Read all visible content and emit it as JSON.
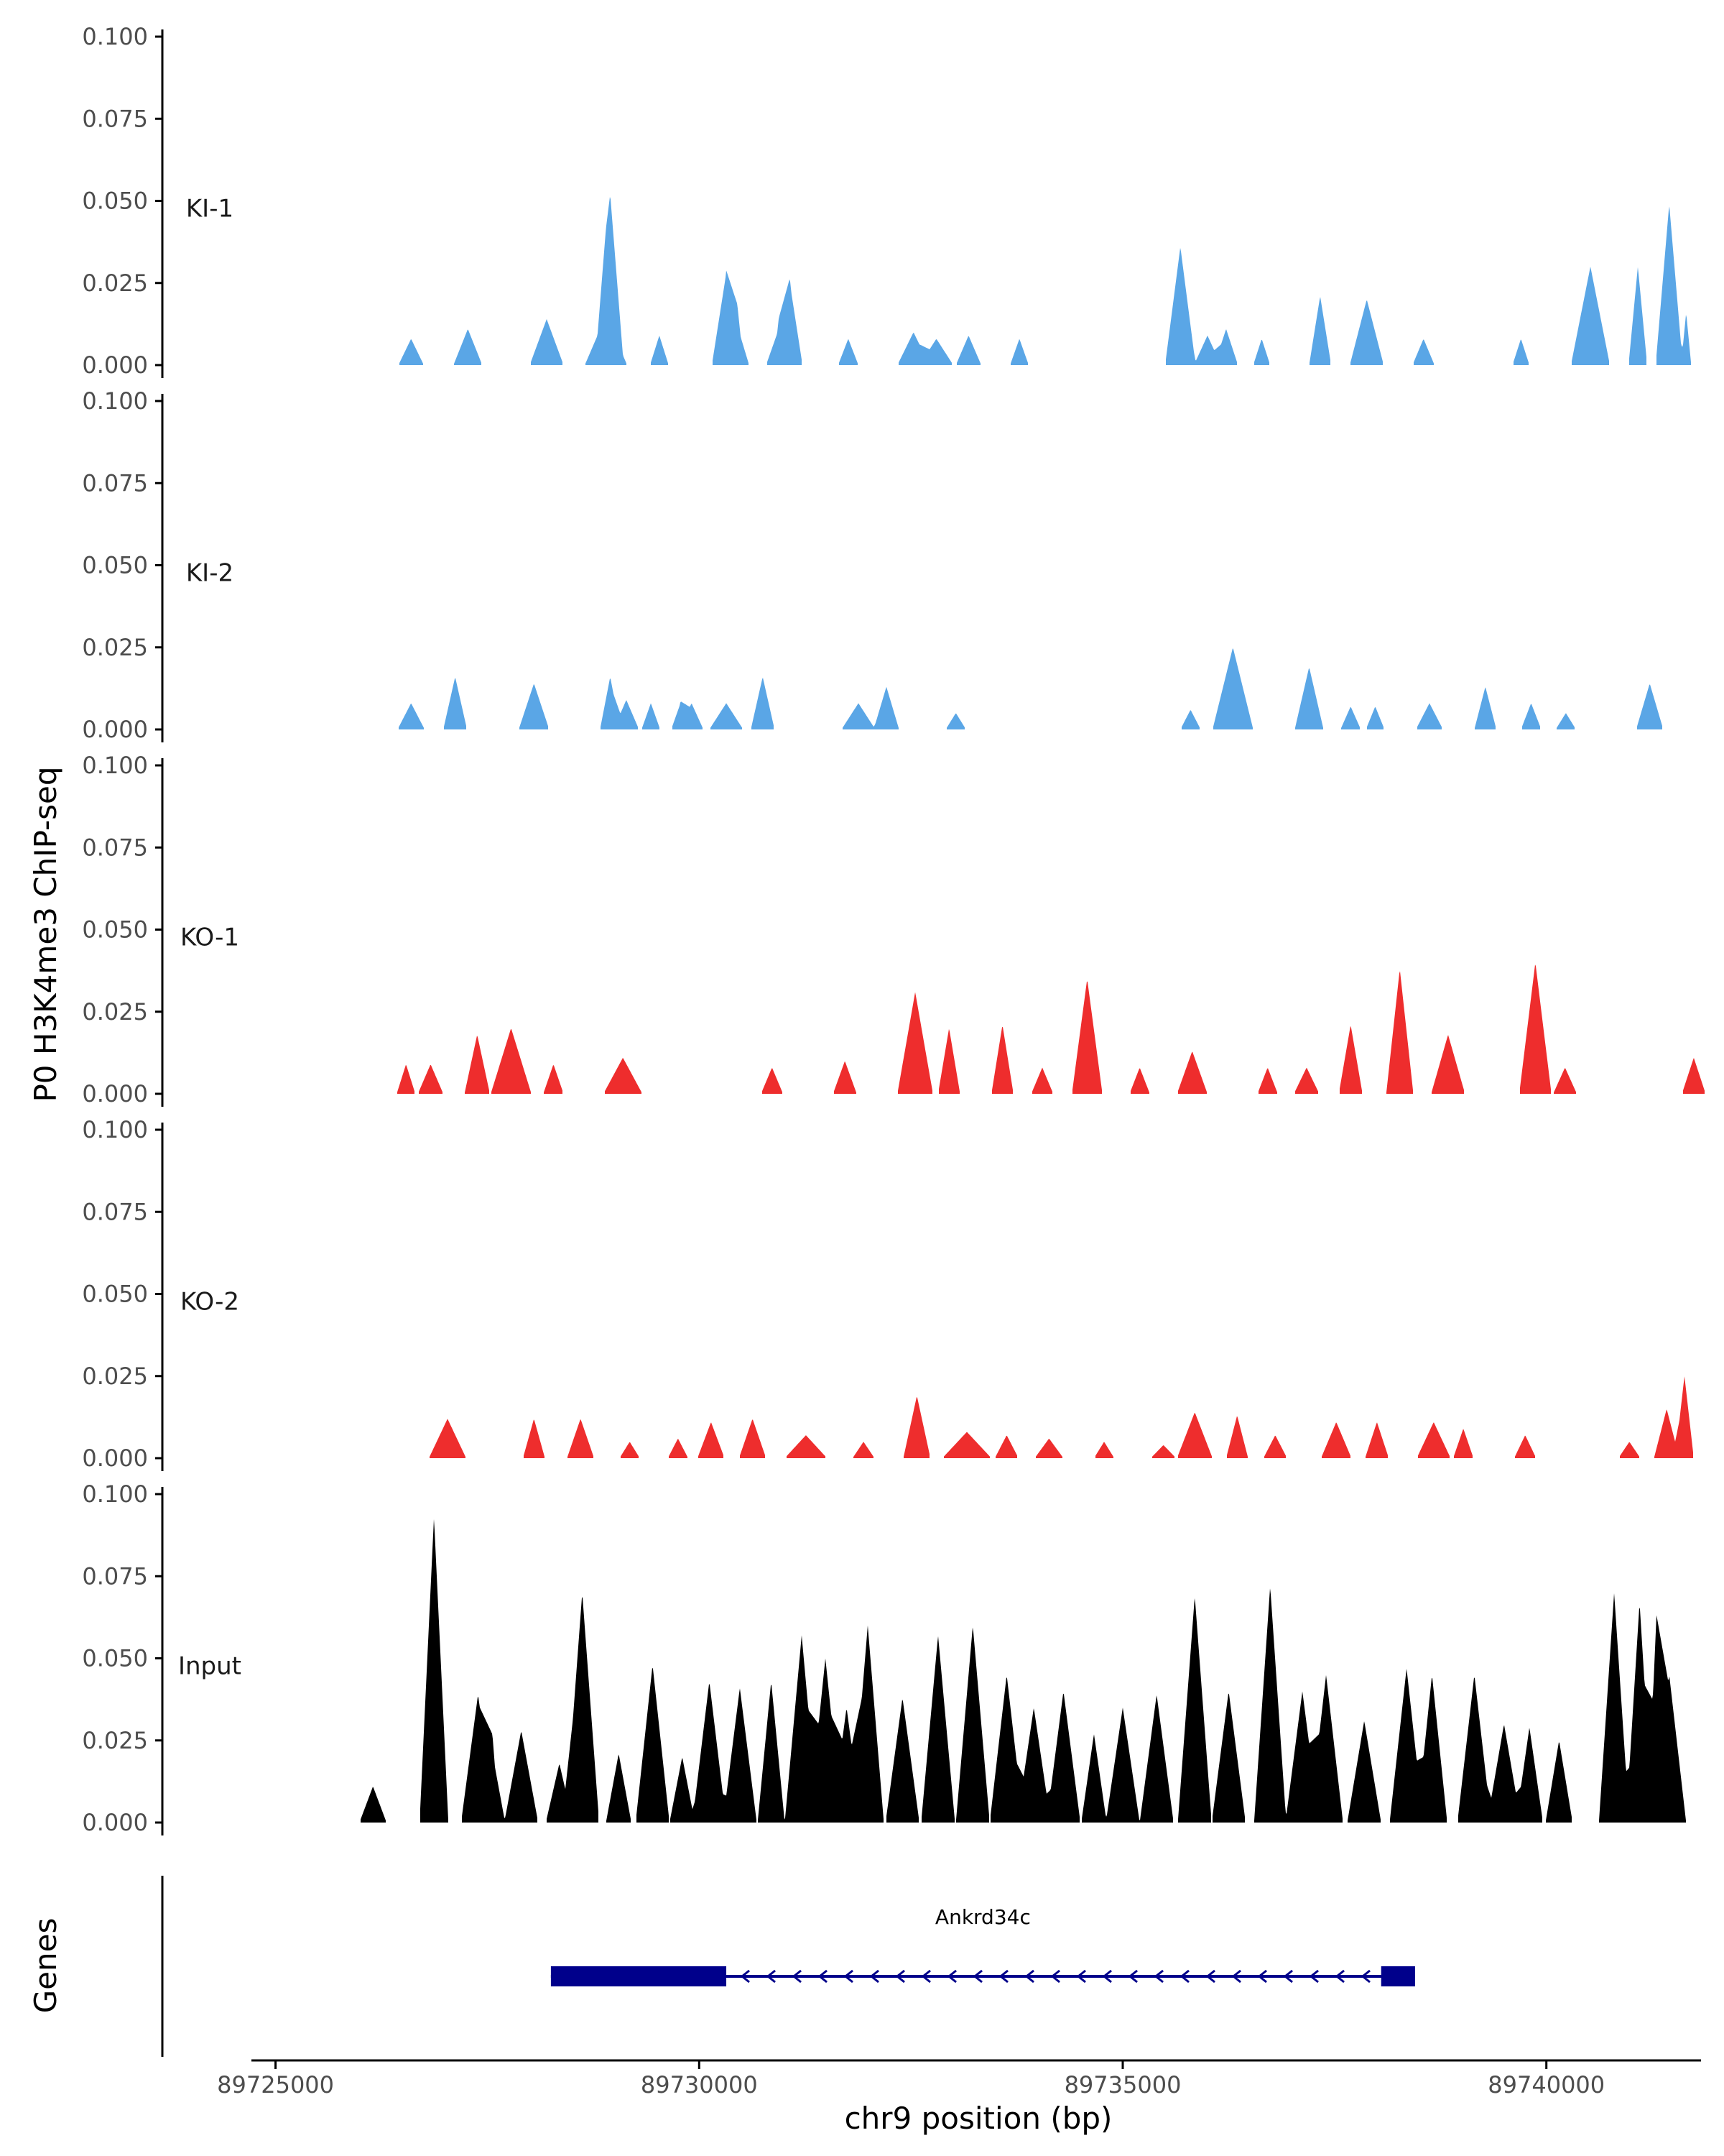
{
  "chart_data": {
    "type": "area",
    "y_axis_title": "P0 H3K4me3 ChIP-seq",
    "x_axis_title": "chr9 position (bp)",
    "genes_axis_title": "Genes",
    "xlim": [
      89724800,
      89741800
    ],
    "x_ticks": [
      89725000,
      89730000,
      89735000,
      89740000
    ],
    "x_tick_labels": [
      "89725000",
      "89730000",
      "89735000",
      "89740000"
    ],
    "ylim": [
      0,
      0.1
    ],
    "y_ticks": [
      0,
      0.025,
      0.05,
      0.075,
      0.1
    ],
    "y_tick_labels": [
      "0.000",
      "0.025",
      "0.050",
      "0.075",
      "0.100"
    ],
    "colors": {
      "KI": "#5aa6e6",
      "KO": "#ee2d2d",
      "Input": "#000000",
      "gene": "#00008b",
      "axis": "#000000"
    },
    "tracks": [
      {
        "label": "KI-1",
        "color": "#5aa6e6",
        "peaks": [
          [
            89726600,
            0.008,
            150
          ],
          [
            89727270,
            0.011,
            170
          ],
          [
            89728200,
            0.014,
            200
          ],
          [
            89728950,
            0.04,
            150
          ],
          [
            89728900,
            0.015,
            250
          ],
          [
            89729530,
            0.009,
            110
          ],
          [
            89730320,
            0.028,
            170
          ],
          [
            89730450,
            0.012,
            140
          ],
          [
            89730940,
            0.011,
            150
          ],
          [
            89731070,
            0.025,
            150
          ],
          [
            89731760,
            0.008,
            120
          ],
          [
            89732530,
            0.01,
            190
          ],
          [
            89732800,
            0.008,
            200
          ],
          [
            89733180,
            0.009,
            150
          ],
          [
            89733780,
            0.008,
            110
          ],
          [
            89735680,
            0.036,
            180
          ],
          [
            89736000,
            0.009,
            160
          ],
          [
            89736220,
            0.011,
            140
          ],
          [
            89736640,
            0.008,
            100
          ],
          [
            89737330,
            0.021,
            130
          ],
          [
            89737880,
            0.02,
            200
          ],
          [
            89738550,
            0.008,
            130
          ],
          [
            89739700,
            0.008,
            100
          ],
          [
            89740520,
            0.03,
            230
          ],
          [
            89741080,
            0.03,
            110
          ],
          [
            89741450,
            0.049,
            160
          ],
          [
            89741650,
            0.016,
            60
          ]
        ]
      },
      {
        "label": "KI-2",
        "color": "#5aa6e6",
        "peaks": [
          [
            89726600,
            0.008,
            160
          ],
          [
            89727120,
            0.016,
            140
          ],
          [
            89728050,
            0.014,
            180
          ],
          [
            89728950,
            0.016,
            120
          ],
          [
            89729140,
            0.009,
            150
          ],
          [
            89729430,
            0.008,
            110
          ],
          [
            89729780,
            0.008,
            110
          ],
          [
            89729910,
            0.008,
            140
          ],
          [
            89730320,
            0.008,
            200
          ],
          [
            89730750,
            0.016,
            140
          ],
          [
            89731880,
            0.008,
            200
          ],
          [
            89732210,
            0.013,
            150
          ],
          [
            89733030,
            0.005,
            120
          ],
          [
            89735800,
            0.006,
            120
          ],
          [
            89736300,
            0.025,
            240
          ],
          [
            89737200,
            0.019,
            170
          ],
          [
            89737690,
            0.007,
            120
          ],
          [
            89737980,
            0.007,
            110
          ],
          [
            89738620,
            0.008,
            160
          ],
          [
            89739280,
            0.013,
            130
          ],
          [
            89739820,
            0.008,
            120
          ],
          [
            89740230,
            0.005,
            120
          ],
          [
            89741220,
            0.014,
            160
          ]
        ]
      },
      {
        "label": "KO-1",
        "color": "#ee2d2d",
        "peaks": [
          [
            89726540,
            0.009,
            110
          ],
          [
            89726830,
            0.009,
            150
          ],
          [
            89727380,
            0.018,
            150
          ],
          [
            89727780,
            0.02,
            240
          ],
          [
            89728280,
            0.009,
            120
          ],
          [
            89729100,
            0.011,
            230
          ],
          [
            89730860,
            0.008,
            130
          ],
          [
            89731720,
            0.01,
            140
          ],
          [
            89732550,
            0.031,
            210
          ],
          [
            89732950,
            0.02,
            130
          ],
          [
            89733580,
            0.021,
            130
          ],
          [
            89734050,
            0.008,
            130
          ],
          [
            89734580,
            0.035,
            180
          ],
          [
            89735200,
            0.008,
            120
          ],
          [
            89735820,
            0.013,
            180
          ],
          [
            89736710,
            0.008,
            120
          ],
          [
            89737170,
            0.008,
            150
          ],
          [
            89737690,
            0.021,
            140
          ],
          [
            89738270,
            0.038,
            160
          ],
          [
            89738840,
            0.018,
            200
          ],
          [
            89739870,
            0.04,
            190
          ],
          [
            89740220,
            0.008,
            140
          ],
          [
            89741740,
            0.011,
            140
          ]
        ]
      },
      {
        "label": "KO-2",
        "color": "#ee2d2d",
        "peaks": [
          [
            89727030,
            0.012,
            220
          ],
          [
            89728050,
            0.012,
            130
          ],
          [
            89728600,
            0.012,
            160
          ],
          [
            89729180,
            0.005,
            120
          ],
          [
            89729750,
            0.006,
            120
          ],
          [
            89730140,
            0.011,
            160
          ],
          [
            89730630,
            0.012,
            160
          ],
          [
            89731260,
            0.007,
            250
          ],
          [
            89731940,
            0.005,
            130
          ],
          [
            89732570,
            0.019,
            160
          ],
          [
            89733160,
            0.008,
            290
          ],
          [
            89733630,
            0.007,
            140
          ],
          [
            89734130,
            0.006,
            170
          ],
          [
            89734780,
            0.005,
            120
          ],
          [
            89735480,
            0.004,
            150
          ],
          [
            89735850,
            0.014,
            210
          ],
          [
            89736350,
            0.013,
            130
          ],
          [
            89736800,
            0.007,
            140
          ],
          [
            89737520,
            0.011,
            180
          ],
          [
            89738000,
            0.011,
            140
          ],
          [
            89738670,
            0.011,
            200
          ],
          [
            89739020,
            0.009,
            120
          ],
          [
            89739750,
            0.007,
            130
          ],
          [
            89740980,
            0.005,
            130
          ],
          [
            89741420,
            0.015,
            150
          ],
          [
            89741630,
            0.025,
            110
          ]
        ]
      },
      {
        "label": "Input",
        "color": "#000000",
        "peaks": [
          [
            89726870,
            0.093,
            170
          ],
          [
            89726150,
            0.011,
            160
          ],
          [
            89727390,
            0.039,
            200
          ],
          [
            89727560,
            0.021,
            150
          ],
          [
            89727900,
            0.028,
            200
          ],
          [
            89728620,
            0.07,
            200
          ],
          [
            89728350,
            0.018,
            160
          ],
          [
            89729050,
            0.021,
            150
          ],
          [
            89729450,
            0.048,
            200
          ],
          [
            89729800,
            0.02,
            150
          ],
          [
            89730120,
            0.043,
            200
          ],
          [
            89730480,
            0.041,
            200
          ],
          [
            89730850,
            0.043,
            160
          ],
          [
            89731210,
            0.057,
            200
          ],
          [
            89731490,
            0.05,
            200
          ],
          [
            89731740,
            0.035,
            180
          ],
          [
            89731990,
            0.06,
            190
          ],
          [
            89732400,
            0.038,
            200
          ],
          [
            89732820,
            0.057,
            200
          ],
          [
            89733230,
            0.06,
            200
          ],
          [
            89733630,
            0.045,
            200
          ],
          [
            89733950,
            0.035,
            200
          ],
          [
            89734300,
            0.04,
            200
          ],
          [
            89734660,
            0.027,
            150
          ],
          [
            89735000,
            0.035,
            200
          ],
          [
            89735400,
            0.039,
            200
          ],
          [
            89735850,
            0.069,
            200
          ],
          [
            89736250,
            0.04,
            200
          ],
          [
            89736740,
            0.072,
            190
          ],
          [
            89737120,
            0.04,
            200
          ],
          [
            89737400,
            0.045,
            200
          ],
          [
            89737850,
            0.031,
            200
          ],
          [
            89738350,
            0.047,
            200
          ],
          [
            89738650,
            0.045,
            180
          ],
          [
            89739150,
            0.045,
            200
          ],
          [
            89739500,
            0.03,
            200
          ],
          [
            89739800,
            0.029,
            160
          ],
          [
            89740150,
            0.025,
            160
          ],
          [
            89740800,
            0.07,
            180
          ],
          [
            89741100,
            0.067,
            160
          ],
          [
            89741300,
            0.052,
            140
          ],
          [
            89741450,
            0.045,
            200
          ]
        ]
      }
    ],
    "gene": {
      "name": "Ankrd34c",
      "strand": "-",
      "start": 89728250,
      "end": 89738450,
      "exons": [
        [
          89728250,
          89730320
        ],
        [
          89738050,
          89738450
        ]
      ]
    }
  }
}
